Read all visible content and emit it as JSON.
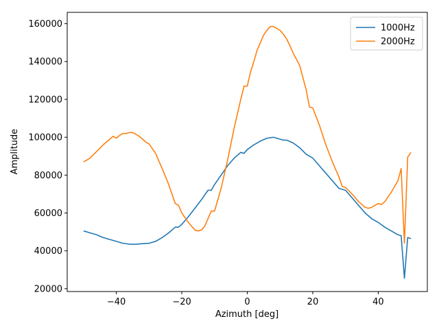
{
  "chart_data": {
    "type": "line",
    "title": "",
    "xlabel": "Azimuth [deg]",
    "ylabel": "Amplitude",
    "xlim": [
      -55,
      55
    ],
    "ylim": [
      18500,
      166000
    ],
    "xticks": [
      -40,
      -20,
      0,
      20,
      40
    ],
    "xtick_labels": [
      "−40",
      "−20",
      "0",
      "20",
      "40"
    ],
    "yticks": [
      20000,
      40000,
      60000,
      80000,
      100000,
      120000,
      140000,
      160000
    ],
    "ytick_labels": [
      "20000",
      "40000",
      "60000",
      "80000",
      "100000",
      "120000",
      "140000",
      "160000"
    ],
    "grid": false,
    "legend_position": "top-right",
    "series": [
      {
        "name": "1000Hz",
        "color": "#1f77b4",
        "x": [
          -50,
          -48,
          -46,
          -44,
          -42,
          -40,
          -38,
          -36,
          -34,
          -32,
          -30,
          -28,
          -26,
          -24,
          -22,
          -21,
          -20,
          -18,
          -16,
          -14,
          -12,
          -11,
          -10,
          -8,
          -6,
          -4,
          -2,
          -1,
          0,
          2,
          4,
          6,
          8,
          9,
          10,
          11,
          12,
          14,
          16,
          18,
          20,
          22,
          24,
          26,
          28,
          30,
          32,
          34,
          36,
          38,
          39,
          40,
          42,
          44,
          46,
          47,
          48,
          49,
          50
        ],
        "y": [
          50500,
          49500,
          48500,
          47000,
          46000,
          45000,
          44000,
          43500,
          43500,
          43800,
          44000,
          45000,
          47000,
          49500,
          52500,
          52500,
          54000,
          58000,
          62500,
          67000,
          72000,
          72000,
          75000,
          80000,
          85000,
          89000,
          92000,
          91500,
          93500,
          96000,
          98000,
          99500,
          100000,
          99500,
          99000,
          98500,
          98500,
          97000,
          94500,
          91000,
          89000,
          85000,
          81000,
          77000,
          73000,
          72000,
          68000,
          64000,
          60000,
          57000,
          56000,
          55000,
          52500,
          50500,
          48500,
          48000,
          25500,
          47000,
          46500
        ]
      },
      {
        "name": "2000Hz",
        "color": "#ff7f0e",
        "x": [
          -50,
          -48,
          -46,
          -44,
          -42,
          -41,
          -40,
          -39,
          -38,
          -37,
          -36,
          -35,
          -34,
          -33,
          -32,
          -31,
          -30,
          -28,
          -26,
          -24,
          -22,
          -21,
          -20,
          -18,
          -16,
          -15,
          -14,
          -13,
          -12,
          -11,
          -10,
          -8,
          -6,
          -4,
          -2,
          -1,
          0,
          1,
          2,
          3,
          4,
          5,
          6,
          7,
          8,
          9,
          10,
          11,
          12,
          13,
          14,
          16,
          18,
          19,
          20,
          22,
          24,
          26,
          28,
          29,
          30,
          32,
          34,
          36,
          37,
          38,
          39,
          40,
          41,
          42,
          44,
          46,
          47,
          48,
          49,
          50
        ],
        "y": [
          87000,
          89000,
          92500,
          96000,
          99000,
          100500,
          99500,
          101000,
          102000,
          102000,
          102500,
          102500,
          101500,
          100500,
          99000,
          97500,
          96500,
          91500,
          83500,
          75000,
          65000,
          64000,
          60000,
          55000,
          51000,
          50500,
          51000,
          53000,
          57000,
          61000,
          61000,
          73000,
          88000,
          105000,
          120000,
          127000,
          127000,
          134500,
          140000,
          146000,
          150000,
          154000,
          156500,
          158500,
          158500,
          157500,
          156500,
          154500,
          152000,
          148500,
          144500,
          138000,
          125000,
          116000,
          115500,
          106500,
          96000,
          87000,
          79000,
          74000,
          73500,
          70000,
          66000,
          63000,
          62500,
          63000,
          64000,
          65000,
          64500,
          66000,
          71000,
          77000,
          83500,
          44000,
          89500,
          92000
        ]
      }
    ]
  }
}
